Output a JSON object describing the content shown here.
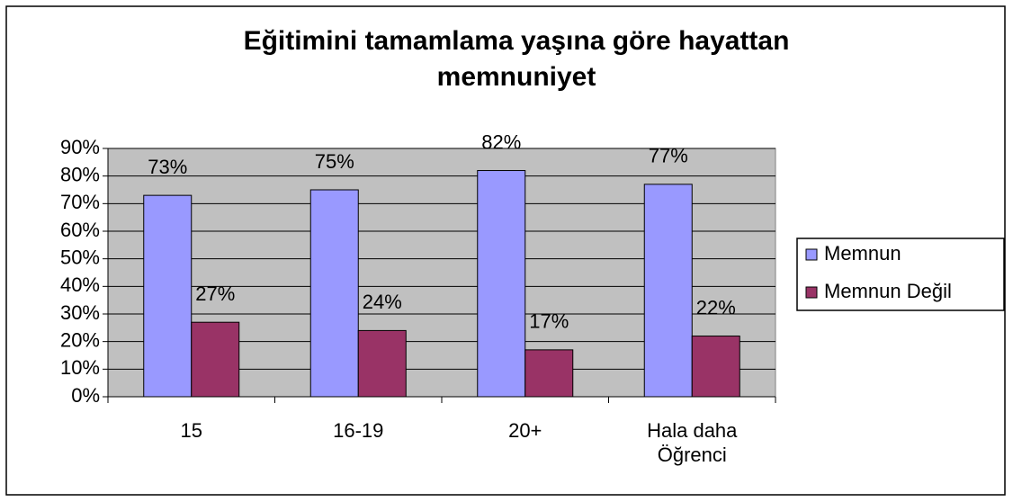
{
  "chart_data": {
    "type": "bar",
    "title": "Eğitimini tamamlama yaşına göre hayattan memnuniyet",
    "categories": [
      "15",
      "16-19",
      "20+",
      "Hala daha Öğrenci"
    ],
    "series": [
      {
        "name": "Memnun",
        "color": "#9999ff",
        "values": [
          73,
          75,
          82,
          77
        ],
        "value_labels": [
          "73%",
          "75%",
          "82%",
          "77%"
        ]
      },
      {
        "name": "Memnun Değil",
        "color": "#993366",
        "values": [
          27,
          24,
          17,
          22
        ],
        "value_labels": [
          "27%",
          "24%",
          "17%",
          "22%"
        ]
      }
    ],
    "ylim": [
      0,
      90
    ],
    "yticks": [
      {
        "value": 0,
        "label": "0%"
      },
      {
        "value": 10,
        "label": "10%"
      },
      {
        "value": 20,
        "label": "20%"
      },
      {
        "value": 30,
        "label": "30%"
      },
      {
        "value": 40,
        "label": "40%"
      },
      {
        "value": 50,
        "label": "50%"
      },
      {
        "value": 60,
        "label": "60%"
      },
      {
        "value": 70,
        "label": "70%"
      },
      {
        "value": 80,
        "label": "80%"
      },
      {
        "value": 90,
        "label": "90%"
      }
    ],
    "grid": true,
    "legend": "right",
    "plot_background": "#c0c0c0"
  }
}
